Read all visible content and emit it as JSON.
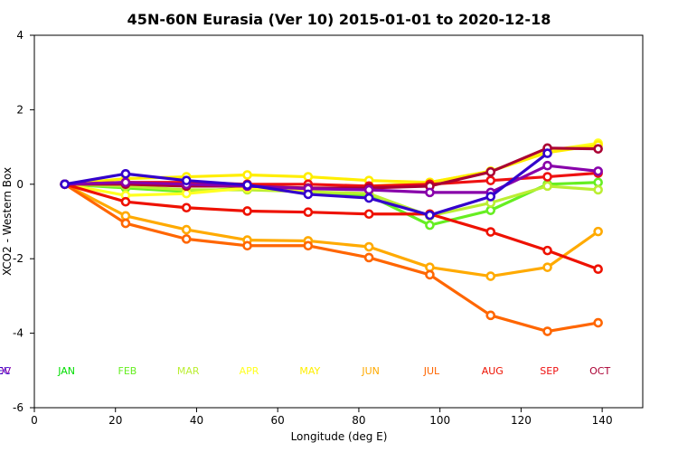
{
  "chart_data": {
    "type": "line",
    "title": "45N-60N Eurasia (Ver 10)   2015-01-01 to 2020-12-18",
    "xlabel": "Longitude (deg E)",
    "ylabel": "XCO2 - Western Box",
    "xlim": [
      0,
      150
    ],
    "ylim": [
      -6,
      4
    ],
    "xticks": [
      0,
      20,
      40,
      60,
      80,
      100,
      120,
      140
    ],
    "yticks": [
      -6,
      -4,
      -2,
      0,
      2,
      4
    ],
    "x": [
      7.5,
      22.5,
      37.5,
      52.5,
      67.5,
      82.5,
      97.5,
      112.5,
      126.5,
      139
    ],
    "month_labels_y": -5,
    "series": [
      {
        "name": "JAN",
        "color": "#00dd00",
        "values": [
          0.0,
          null,
          null,
          null,
          null,
          null,
          null,
          null,
          null,
          null
        ]
      },
      {
        "name": "FEB",
        "color": "#66ee22",
        "values": [
          0.0,
          -0.1,
          -0.2,
          -0.1,
          -0.2,
          -0.3,
          -1.1,
          -0.7,
          0.0,
          0.05
        ]
      },
      {
        "name": "MAR",
        "color": "#bbee33",
        "values": [
          0.0,
          -0.05,
          -0.15,
          -0.15,
          -0.2,
          -0.25,
          -0.85,
          -0.5,
          -0.05,
          -0.15
        ]
      },
      {
        "name": "APR",
        "color": "#ffff22",
        "values": [
          0.0,
          -0.3,
          -0.25,
          -0.1,
          -0.15,
          -0.05,
          0.05,
          0.35,
          0.9,
          1.1
        ]
      },
      {
        "name": "MAY",
        "color": "#ffee00",
        "values": [
          0.0,
          0.15,
          0.2,
          0.25,
          0.2,
          0.1,
          0.05,
          0.35,
          0.85,
          1.05
        ]
      },
      {
        "name": "JUN",
        "color": "#ffaa00",
        "values": [
          0.0,
          -0.85,
          -1.22,
          -1.5,
          -1.52,
          -1.68,
          -2.23,
          -2.47,
          -2.23,
          -1.27
        ]
      },
      {
        "name": "JUL",
        "color": "#ff6600",
        "values": [
          0.0,
          -1.05,
          -1.47,
          -1.65,
          -1.65,
          -1.97,
          -2.43,
          -3.52,
          -3.95,
          -3.72
        ]
      },
      {
        "name": "AUG",
        "color": "#ee1100",
        "values": [
          0.0,
          -0.47,
          -0.63,
          -0.72,
          -0.75,
          -0.8,
          -0.8,
          -1.28,
          -1.78,
          -2.28
        ]
      },
      {
        "name": "SEP",
        "color": "#ee1111",
        "values": [
          0.0,
          0.05,
          0.05,
          0.0,
          0.0,
          -0.05,
          0.0,
          0.1,
          0.2,
          0.3
        ]
      },
      {
        "name": "OCT",
        "color": "#aa0033",
        "values": [
          0.0,
          0.0,
          -0.05,
          -0.05,
          -0.1,
          -0.1,
          -0.05,
          0.33,
          0.97,
          0.95
        ]
      },
      {
        "name": "NOV",
        "color": "#8800aa",
        "values": [
          0.0,
          0.05,
          0.0,
          -0.05,
          -0.12,
          -0.15,
          -0.22,
          -0.22,
          0.5,
          0.35
        ]
      },
      {
        "name": "DEC",
        "color": "#3300cc",
        "values": [
          0.0,
          0.28,
          0.1,
          -0.02,
          -0.27,
          -0.37,
          -0.83,
          -0.33,
          0.83,
          null
        ]
      }
    ]
  }
}
